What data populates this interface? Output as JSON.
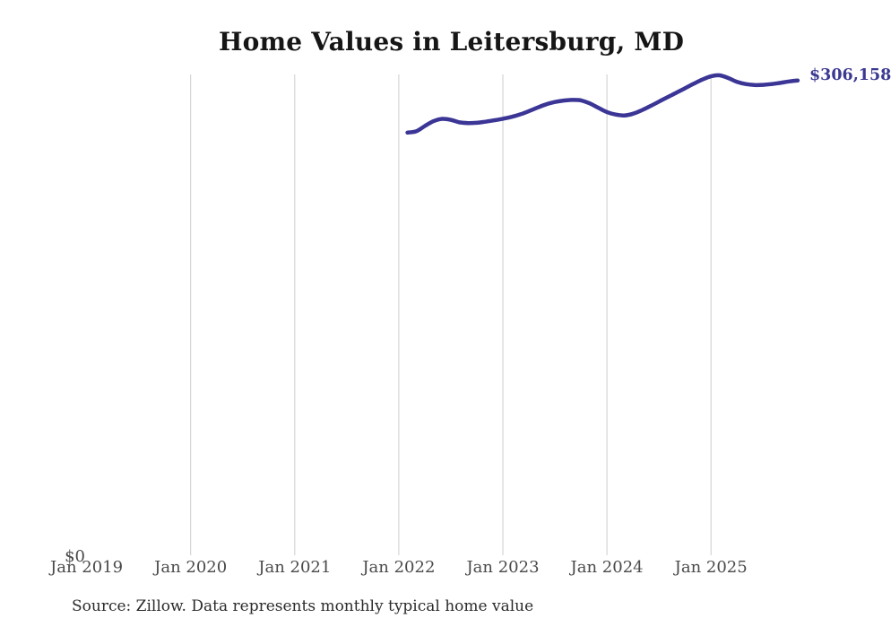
{
  "page": {
    "title": "Home Values in Leitersburg, MD",
    "latest_value_label": "$306,158",
    "y_zero_label": "$0",
    "source_note": "Source: Zillow. Data represents monthly typical home value"
  },
  "colors": {
    "line": "#3b3596",
    "value_label": "#3a3890",
    "grid": "#cdcdcd",
    "tick_text": "#4a4a4a",
    "title_text": "#161616",
    "source_text": "#2b2b2b",
    "background": "#ffffff"
  },
  "chart_data": {
    "type": "line",
    "title": "Home Values in Leitersburg, MD",
    "xlabel": "",
    "ylabel": "",
    "ylim": [
      0,
      310000
    ],
    "grid": "vertical-only",
    "legend": "none",
    "x_ticks": [
      {
        "label": "Jan 2019",
        "month": 0,
        "gridline": false
      },
      {
        "label": "Jan 2020",
        "month": 12,
        "gridline": true
      },
      {
        "label": "Jan 2021",
        "month": 24,
        "gridline": true
      },
      {
        "label": "Jan 2022",
        "month": 36,
        "gridline": true
      },
      {
        "label": "Jan 2023",
        "month": 48,
        "gridline": true
      },
      {
        "label": "Jan 2024",
        "month": 60,
        "gridline": true
      },
      {
        "label": "Jan 2025",
        "month": 72,
        "gridline": true
      }
    ],
    "y_ticks": [
      {
        "label": "$0",
        "value": 0
      }
    ],
    "end_annotation": {
      "text": "$306,158",
      "value": 306158
    },
    "series": [
      {
        "name": "Monthly typical home value",
        "start_month": 37,
        "months": [
          "Feb 2022",
          "Mar 2022",
          "Apr 2022",
          "May 2022",
          "Jun 2022",
          "Jul 2022",
          "Aug 2022",
          "Sep 2022",
          "Oct 2022",
          "Nov 2022",
          "Dec 2022",
          "Jan 2023",
          "Feb 2023",
          "Mar 2023",
          "Apr 2023",
          "May 2023",
          "Jun 2023",
          "Jul 2023",
          "Aug 2023",
          "Sep 2023",
          "Oct 2023",
          "Nov 2023",
          "Dec 2023",
          "Jan 2024",
          "Feb 2024",
          "Mar 2024",
          "Apr 2024",
          "May 2024",
          "Jun 2024",
          "Jul 2024",
          "Aug 2024",
          "Sep 2024",
          "Oct 2024",
          "Nov 2024",
          "Dec 2024",
          "Jan 2025",
          "Feb 2025",
          "Mar 2025",
          "Apr 2025",
          "May 2025",
          "Jun 2025",
          "Jul 2025",
          "Aug 2025",
          "Sep 2025",
          "Oct 2025",
          "Nov 2025"
        ],
        "values": [
          272600,
          273400,
          276800,
          279900,
          281400,
          280800,
          279200,
          278700,
          278900,
          279600,
          280500,
          281500,
          282700,
          284300,
          286400,
          288700,
          290800,
          292300,
          293200,
          293600,
          293300,
          291400,
          288600,
          285800,
          284200,
          283600,
          284700,
          286900,
          289600,
          292500,
          295400,
          298200,
          301100,
          304000,
          306700,
          308800,
          309400,
          307700,
          305200,
          303800,
          303200,
          303300,
          303800,
          304600,
          305500,
          306158
        ]
      }
    ]
  }
}
